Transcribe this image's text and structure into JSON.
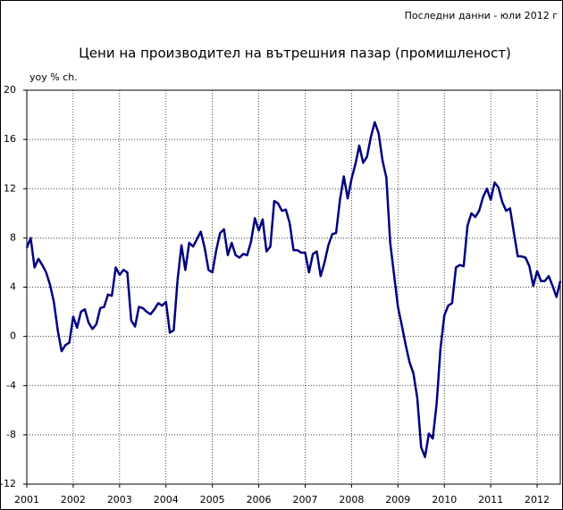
{
  "chart_data": {
    "type": "line",
    "note": "Последни данни - юли 2012 г",
    "title": "Цени на производител на вътрешния пазар (промишленост)",
    "ylabel": "yoy % ch.",
    "categories": [
      "2001",
      null,
      null,
      null,
      null,
      null,
      null,
      null,
      null,
      null,
      null,
      null,
      "2002",
      null,
      null,
      null,
      null,
      null,
      null,
      null,
      null,
      null,
      null,
      null,
      "2003",
      null,
      null,
      null,
      null,
      null,
      null,
      null,
      null,
      null,
      null,
      null,
      "2004",
      null,
      null,
      null,
      null,
      null,
      null,
      null,
      null,
      null,
      null,
      null,
      "2005",
      null,
      null,
      null,
      null,
      null,
      null,
      null,
      null,
      null,
      null,
      null,
      "2006",
      null,
      null,
      null,
      null,
      null,
      null,
      null,
      null,
      null,
      null,
      null,
      "2007",
      null,
      null,
      null,
      null,
      null,
      null,
      null,
      null,
      null,
      null,
      null,
      "2008",
      null,
      null,
      null,
      null,
      null,
      null,
      null,
      null,
      null,
      null,
      null,
      "2009",
      null,
      null,
      null,
      null,
      null,
      null,
      null,
      null,
      null,
      null,
      null,
      "2010",
      null,
      null,
      null,
      null,
      null,
      null,
      null,
      null,
      null,
      null,
      null,
      "2011",
      null,
      null,
      null,
      null,
      null,
      null,
      null,
      null,
      null,
      null,
      null,
      "2012",
      null,
      null,
      null,
      null,
      null,
      null
    ],
    "values": [
      7.2,
      8.0,
      5.6,
      6.3,
      5.8,
      5.2,
      4.2,
      2.8,
      0.5,
      -1.2,
      -0.7,
      -0.5,
      1.6,
      0.7,
      2.0,
      2.2,
      1.1,
      0.6,
      1.0,
      2.3,
      2.4,
      3.4,
      3.3,
      5.6,
      5.0,
      5.4,
      5.2,
      1.3,
      0.8,
      2.4,
      2.3,
      2.0,
      1.8,
      2.2,
      2.7,
      2.5,
      2.8,
      0.3,
      0.5,
      4.6,
      7.4,
      5.4,
      7.6,
      7.3,
      7.9,
      8.5,
      7.2,
      5.4,
      5.2,
      7.0,
      8.4,
      8.7,
      6.6,
      7.6,
      6.6,
      6.4,
      6.7,
      6.6,
      7.7,
      9.6,
      8.6,
      9.5,
      6.9,
      7.3,
      11.0,
      10.8,
      10.2,
      10.3,
      9.2,
      7.0,
      7.0,
      6.8,
      6.8,
      5.2,
      6.7,
      6.9,
      4.9,
      6.0,
      7.4,
      8.3,
      8.4,
      11.1,
      13.0,
      11.2,
      12.8,
      14.0,
      15.5,
      14.1,
      14.6,
      16.2,
      17.4,
      16.5,
      14.3,
      12.9,
      7.6,
      5.0,
      2.4,
      0.9,
      -0.7,
      -2.1,
      -3.0,
      -5.0,
      -9.0,
      -9.8,
      -7.9,
      -8.3,
      -5.5,
      -1.0,
      1.7,
      2.5,
      2.7,
      5.6,
      5.8,
      5.7,
      9.0,
      10.0,
      9.7,
      10.2,
      11.3,
      12.0,
      11.1,
      12.5,
      12.1,
      10.9,
      10.2,
      10.4,
      8.4,
      6.5,
      6.5,
      6.4,
      5.7,
      4.1,
      5.3,
      4.5,
      4.5,
      4.9,
      4.1,
      3.2,
      4.5
    ],
    "color": "#000080",
    "ylim": [
      -12,
      20
    ],
    "yticks": [
      -12,
      -8,
      -4,
      0,
      4,
      8,
      12,
      16,
      20
    ],
    "grid": true
  }
}
